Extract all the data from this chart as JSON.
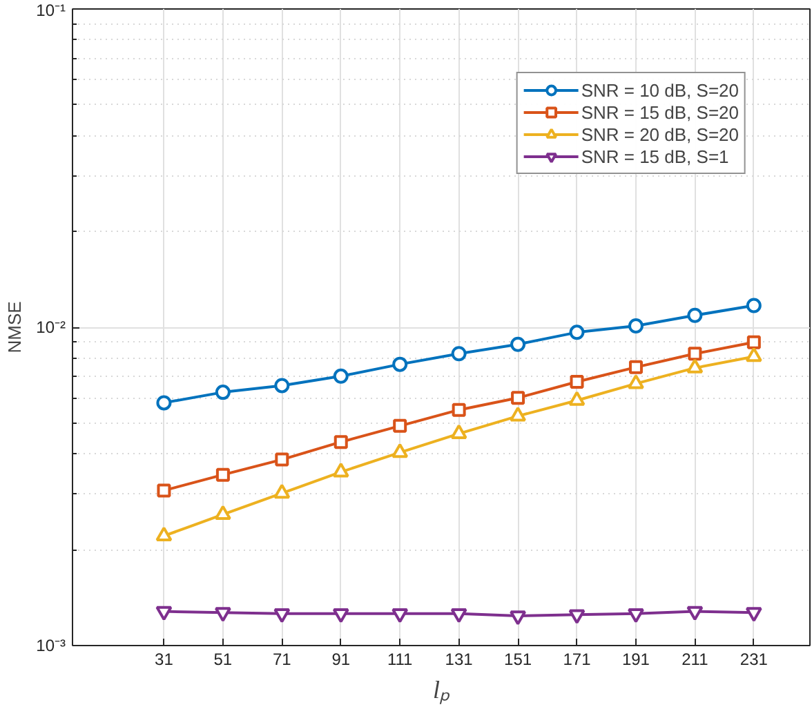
{
  "chart_data": {
    "type": "line",
    "xlabel": "lₚ",
    "ylabel": "NMSE",
    "log": "y",
    "grid": true,
    "legend": "top right",
    "xlim": [
      0,
      250
    ],
    "xticks": [
      31,
      51,
      71,
      91,
      111,
      131,
      151,
      171,
      191,
      211,
      231
    ],
    "ylim": [
      0.001,
      0.1
    ],
    "yticks": [
      {
        "value": 0.001,
        "label": "10⁻³"
      },
      {
        "value": 0.01,
        "label": "10⁻²"
      },
      {
        "value": 0.1,
        "label": "10⁻¹"
      }
    ],
    "x": [
      31,
      51,
      71,
      91,
      111,
      131,
      151,
      171,
      191,
      211,
      231
    ],
    "series": [
      {
        "name": "SNR = 10 dB, S=20",
        "color": "#0072bd",
        "marker": "circle",
        "values": [
          0.00579,
          0.00625,
          0.00656,
          0.00702,
          0.00765,
          0.00826,
          0.00884,
          0.00964,
          0.0101,
          0.0109,
          0.0117
        ]
      },
      {
        "name": "SNR = 15 dB, S=20",
        "color": "#d95319",
        "marker": "square",
        "values": [
          0.00307,
          0.00344,
          0.00384,
          0.00436,
          0.0049,
          0.0055,
          0.006,
          0.00674,
          0.00749,
          0.00826,
          0.00897
        ]
      },
      {
        "name": "SNR = 20 dB, S=20",
        "color": "#edb120",
        "marker": "triangle",
        "values": [
          0.00221,
          0.00258,
          0.00301,
          0.00351,
          0.00404,
          0.00463,
          0.00526,
          0.00589,
          0.00665,
          0.00745,
          0.00809
        ]
      },
      {
        "name": "SNR = 15 dB, S=1",
        "color": "#7e2f8e",
        "marker": "triangle_down",
        "values": [
          0.00128,
          0.00127,
          0.00126,
          0.00126,
          0.00126,
          0.00126,
          0.00124,
          0.00125,
          0.00126,
          0.00128,
          0.00127
        ]
      }
    ]
  }
}
